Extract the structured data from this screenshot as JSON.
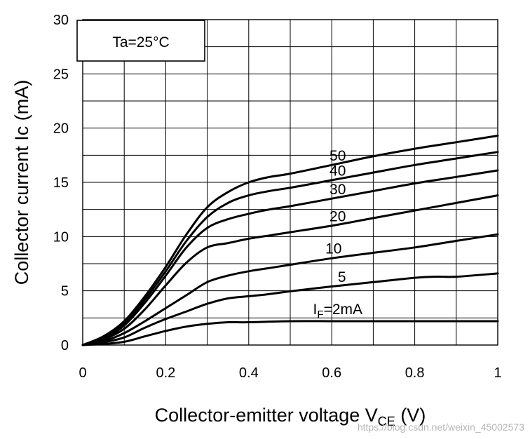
{
  "chart_data": {
    "type": "line",
    "xlabel": "Collector-emitter voltage  V",
    "xlabel_sub": "CE",
    "xlabel_unit": " (V)",
    "ylabel": "Collector current  Ic (mA)",
    "xlim": [
      0,
      1
    ],
    "ylim": [
      0,
      30
    ],
    "xticks": [
      "0",
      "0.2",
      "0.4",
      "0.6",
      "0.8",
      "1"
    ],
    "yticks": [
      "0",
      "5",
      "10",
      "15",
      "20",
      "25",
      "30"
    ],
    "grid": true,
    "annotation": "Ta=25°C",
    "series": [
      {
        "label": "50",
        "x": [
          0,
          0.05,
          0.1,
          0.15,
          0.2,
          0.25,
          0.3,
          0.35,
          0.4,
          0.45,
          0.5,
          0.6,
          0.7,
          0.8,
          0.9,
          1.0
        ],
        "y": [
          0,
          0.8,
          2.2,
          4.5,
          7.2,
          10.2,
          12.7,
          14.1,
          15.0,
          15.5,
          15.8,
          16.6,
          17.4,
          18.1,
          18.7,
          19.3
        ]
      },
      {
        "label": "40",
        "x": [
          0,
          0.05,
          0.1,
          0.15,
          0.2,
          0.25,
          0.3,
          0.35,
          0.4,
          0.45,
          0.5,
          0.6,
          0.7,
          0.8,
          0.9,
          1.0
        ],
        "y": [
          0,
          0.7,
          2.0,
          4.2,
          6.8,
          9.6,
          11.8,
          13.1,
          13.8,
          14.2,
          14.5,
          15.2,
          15.9,
          16.6,
          17.2,
          17.8
        ]
      },
      {
        "label": "30",
        "x": [
          0,
          0.05,
          0.1,
          0.15,
          0.2,
          0.25,
          0.3,
          0.35,
          0.4,
          0.45,
          0.5,
          0.6,
          0.7,
          0.8,
          0.9,
          1.0
        ],
        "y": [
          0,
          0.6,
          1.8,
          3.9,
          6.4,
          9.0,
          10.8,
          11.6,
          12.1,
          12.5,
          12.8,
          13.5,
          14.2,
          14.9,
          15.5,
          16.1
        ]
      },
      {
        "label": "20",
        "x": [
          0,
          0.05,
          0.1,
          0.15,
          0.2,
          0.25,
          0.3,
          0.35,
          0.4,
          0.45,
          0.5,
          0.6,
          0.7,
          0.8,
          0.9,
          1.0
        ],
        "y": [
          0,
          0.5,
          1.5,
          3.3,
          5.5,
          7.6,
          9.0,
          9.4,
          9.8,
          10.1,
          10.4,
          11.0,
          11.7,
          12.4,
          13.1,
          13.8
        ]
      },
      {
        "label": "10",
        "x": [
          0,
          0.05,
          0.1,
          0.15,
          0.2,
          0.25,
          0.3,
          0.35,
          0.4,
          0.45,
          0.5,
          0.6,
          0.7,
          0.8,
          0.9,
          1.0
        ],
        "y": [
          0,
          0.35,
          1.1,
          2.2,
          3.4,
          4.6,
          5.8,
          6.4,
          6.8,
          7.1,
          7.4,
          8.0,
          8.5,
          9.0,
          9.6,
          10.2
        ]
      },
      {
        "label": "5",
        "x": [
          0,
          0.05,
          0.1,
          0.15,
          0.2,
          0.25,
          0.3,
          0.35,
          0.4,
          0.45,
          0.5,
          0.6,
          0.7,
          0.8,
          0.85,
          0.9,
          1.0
        ],
        "y": [
          0,
          0.25,
          0.7,
          1.6,
          2.4,
          3.1,
          3.8,
          4.3,
          4.5,
          4.7,
          4.95,
          5.4,
          5.8,
          6.2,
          6.3,
          6.3,
          6.6
        ]
      },
      {
        "label_main": "I",
        "label_sub": "F",
        "label_rest": "=2mA",
        "x": [
          0,
          0.05,
          0.1,
          0.15,
          0.2,
          0.25,
          0.3,
          0.35,
          0.4,
          0.5,
          0.6,
          0.7,
          0.8,
          0.9,
          1.0
        ],
        "y": [
          0,
          0.1,
          0.3,
          0.8,
          1.3,
          1.7,
          1.95,
          2.1,
          2.1,
          2.2,
          2.2,
          2.2,
          2.2,
          2.2,
          2.2
        ]
      }
    ]
  },
  "watermark": "https://blog.csdn.net/weixin_45002573"
}
